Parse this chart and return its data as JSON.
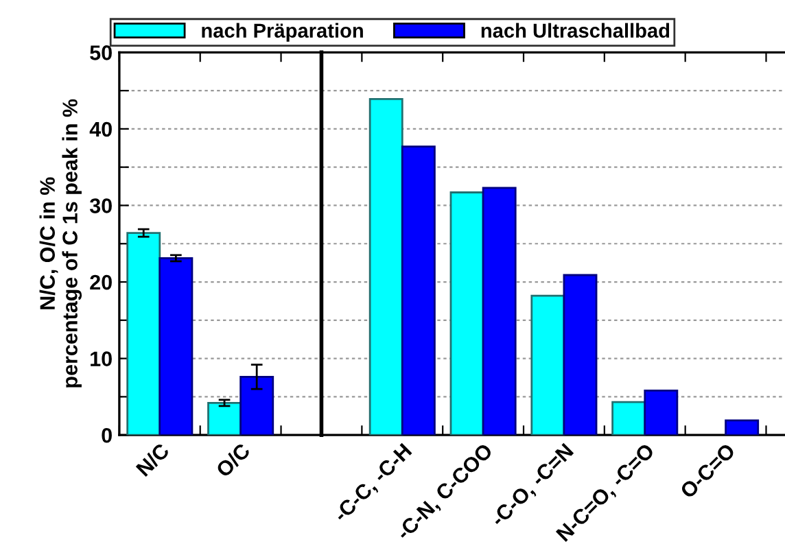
{
  "chart_data": [
    {
      "type": "bar",
      "ylabel": "N/C, O/C in %\npercentage of C 1s peak in %",
      "categories": [
        "N/C",
        "O/C"
      ],
      "series": [
        {
          "name": "nach Präparation",
          "color": "#00ffff",
          "values": [
            26.4,
            4.2
          ],
          "errors": [
            0.5,
            0.4
          ]
        },
        {
          "name": "nach Ultraschallbad",
          "color": "#0000ff",
          "values": [
            23.1,
            7.6
          ],
          "errors": [
            0.4,
            1.6
          ]
        }
      ],
      "ylim": [
        0,
        50
      ],
      "yticks": [
        0,
        {
          "value": 5,
          "label": null
        },
        10,
        {
          "value": 15,
          "label": null
        },
        20,
        {
          "value": 25,
          "label": null
        },
        30,
        {
          "value": 35,
          "label": null
        },
        40,
        {
          "value": 45,
          "label": null
        },
        50
      ],
      "grid": "y",
      "legend": "top"
    },
    {
      "type": "bar",
      "categories": [
        "-C-C, -C-H",
        "-C-N, C-COO",
        "-C-O, -C=N",
        "N-C=O, -C=O",
        "O-C=O"
      ],
      "series": [
        {
          "name": "nach Präparation",
          "color": "#00ffff",
          "values": [
            43.9,
            31.7,
            18.2,
            4.3,
            null
          ]
        },
        {
          "name": "nach Ultraschallbad",
          "color": "#0000ff",
          "values": [
            37.7,
            32.3,
            20.9,
            5.8,
            1.9
          ]
        }
      ],
      "ylim": [
        0,
        50
      ],
      "yticks": [
        0,
        {
          "value": 5,
          "label": null
        },
        10,
        {
          "value": 15,
          "label": null
        },
        20,
        {
          "value": 25,
          "label": null
        },
        30,
        {
          "value": 35,
          "label": null
        },
        40,
        {
          "value": 45,
          "label": null
        },
        50
      ],
      "grid": "y",
      "legend": "top",
      "tick_labels": "x"
    }
  ]
}
